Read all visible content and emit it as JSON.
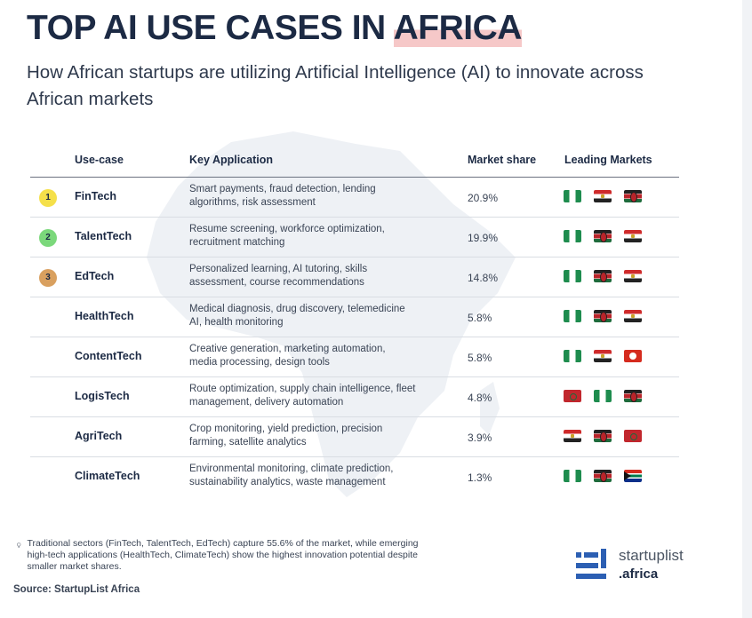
{
  "header": {
    "title_main": "TOP AI USE CASES IN ",
    "title_highlight": "AFRICA",
    "subtitle": "How African startups are utilizing Artificial Intelligence (AI) to innovate across African markets"
  },
  "table": {
    "columns": [
      "Use-case",
      "Key Application",
      "Market share",
      "Leading Markets"
    ],
    "rows": [
      {
        "rank": "1",
        "rank_color": "#f5e04a",
        "use_case": "FinTech",
        "application": "Smart payments, fraud detection, lending algorithms, risk assessment",
        "market_share": "20.9%",
        "flags": [
          "nigeria-flag-icon",
          "egypt-flag-icon",
          "kenya-flag-icon"
        ]
      },
      {
        "rank": "2",
        "rank_color": "#7bd87b",
        "use_case": "TalentTech",
        "application": "Resume screening, workforce optimization, recruitment matching",
        "market_share": "19.9%",
        "flags": [
          "nigeria-flag-icon",
          "kenya-flag-icon",
          "egypt-flag-icon"
        ]
      },
      {
        "rank": "3",
        "rank_color": "#d9a05f",
        "use_case": "EdTech",
        "application": "Personalized learning, AI tutoring, skills assessment, course recommendations",
        "market_share": "14.8%",
        "flags": [
          "nigeria-flag-icon",
          "kenya-flag-icon",
          "egypt-flag-icon"
        ]
      },
      {
        "rank": "",
        "rank_color": "",
        "use_case": "HealthTech",
        "application": "Medical diagnosis, drug discovery, telemedicine AI, health monitoring",
        "market_share": "5.8%",
        "flags": [
          "nigeria-flag-icon",
          "kenya-flag-icon",
          "egypt-flag-icon"
        ]
      },
      {
        "rank": "",
        "rank_color": "",
        "use_case": "ContentTech",
        "application": "Creative generation, marketing automation, media processing, design tools",
        "market_share": "5.8%",
        "flags": [
          "nigeria-flag-icon",
          "egypt-flag-icon",
          "tunisia-flag-icon"
        ]
      },
      {
        "rank": "",
        "rank_color": "",
        "use_case": "LogisTech",
        "application": "Route optimization, supply chain intelligence, fleet management, delivery automation",
        "market_share": "4.8%",
        "flags": [
          "morocco-flag-icon",
          "nigeria-flag-icon",
          "kenya-flag-icon"
        ]
      },
      {
        "rank": "",
        "rank_color": "",
        "use_case": "AgriTech",
        "application": "Crop monitoring, yield prediction, precision farming, satellite analytics",
        "market_share": "3.9%",
        "flags": [
          "egypt-flag-icon",
          "kenya-flag-icon",
          "morocco-flag-icon"
        ]
      },
      {
        "rank": "",
        "rank_color": "",
        "use_case": "ClimateTech",
        "application": "Environmental monitoring, climate prediction, sustainability analytics, waste management",
        "market_share": "1.3%",
        "flags": [
          "nigeria-flag-icon",
          "kenya-flag-icon",
          "south-africa-flag-icon"
        ]
      }
    ]
  },
  "footer": {
    "note": "Traditional sectors (FinTech, TalentTech, EdTech) capture 55.6% of the market, while emerging high-tech applications (HealthTech, ClimateTech) show the highest innovation potential despite smaller market shares.",
    "source_label": "Source:",
    "source_value": "StartupList Africa"
  },
  "logo": {
    "line1": "startuplist",
    "line2": ".africa"
  },
  "colors": {
    "title": "#1c2a44",
    "title_highlight": "#f6c8c8",
    "logo_blue": "#2c5fb3"
  }
}
